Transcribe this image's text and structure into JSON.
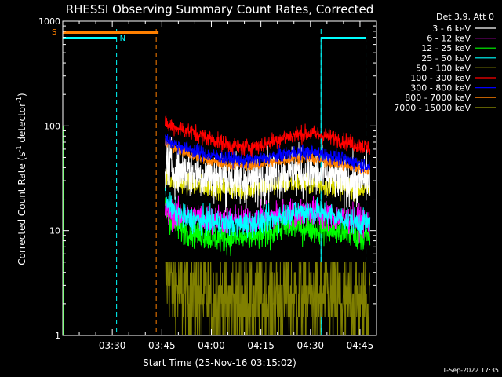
{
  "chart_data": {
    "type": "line",
    "title": "RHESSI Observing Summary Count Rates, Corrected",
    "xlabel": "Start Time (25-Nov-16 03:15:02)",
    "ylabel_main": "Corrected Count Rate (s",
    "ylabel_sup1": "-1",
    "ylabel_mid": " detector",
    "ylabel_sup2": "-1",
    "ylabel_end": ")",
    "y_scale": "log",
    "ylim": [
      1,
      1000
    ],
    "xlim_minutes": [
      0,
      95
    ],
    "y_ticks": [
      {
        "value": 1,
        "label": "1"
      },
      {
        "value": 10,
        "label": "10"
      },
      {
        "value": 100,
        "label": "100"
      },
      {
        "value": 1000,
        "label": "1000"
      }
    ],
    "x_ticks": [
      {
        "minute": 15,
        "label": "03:30"
      },
      {
        "minute": 30,
        "label": "03:45"
      },
      {
        "minute": 45,
        "label": "04:00"
      },
      {
        "minute": 60,
        "label": "04:15"
      },
      {
        "minute": 75,
        "label": "04:30"
      },
      {
        "minute": 90,
        "label": "04:45"
      }
    ],
    "legend_header": "Det 3,9, Att 0",
    "legend_position": "right",
    "series": [
      {
        "name": "3 - 6 keV",
        "color": "#ffffff",
        "points": [
          [
            31,
            45
          ],
          [
            35,
            38
          ],
          [
            40,
            36
          ],
          [
            45,
            33
          ],
          [
            50,
            32
          ],
          [
            55,
            30
          ],
          [
            60,
            32
          ],
          [
            65,
            35
          ],
          [
            70,
            37
          ],
          [
            75,
            35
          ],
          [
            80,
            33
          ],
          [
            85,
            30
          ],
          [
            90,
            31
          ],
          [
            93,
            32
          ]
        ],
        "noise": 0.12
      },
      {
        "name": "6 - 12 keV",
        "color": "#ff00ff",
        "points": [
          [
            31,
            15
          ],
          [
            35,
            14
          ],
          [
            40,
            13.5
          ],
          [
            45,
            13
          ],
          [
            50,
            12.5
          ],
          [
            55,
            12.5
          ],
          [
            60,
            13
          ],
          [
            65,
            14
          ],
          [
            70,
            15
          ],
          [
            75,
            15
          ],
          [
            80,
            14
          ],
          [
            85,
            13
          ],
          [
            90,
            12.5
          ],
          [
            93,
            12
          ]
        ],
        "noise": 0.07
      },
      {
        "name": "12 - 25 keV",
        "color": "#00ff00",
        "points": [
          [
            31,
            16
          ],
          [
            33,
            12
          ],
          [
            36,
            10.5
          ],
          [
            40,
            9.5
          ],
          [
            45,
            8.8
          ],
          [
            50,
            8.5
          ],
          [
            55,
            8.5
          ],
          [
            60,
            9
          ],
          [
            65,
            10.5
          ],
          [
            70,
            11
          ],
          [
            75,
            10.5
          ],
          [
            80,
            10
          ],
          [
            85,
            9.5
          ],
          [
            90,
            9
          ],
          [
            93,
            8.5
          ]
        ],
        "noise": 0.07
      },
      {
        "name": "25 - 50 keV",
        "color": "#00ffff",
        "points": [
          [
            31,
            22
          ],
          [
            33,
            16
          ],
          [
            36,
            13.5
          ],
          [
            40,
            12.5
          ],
          [
            45,
            12
          ],
          [
            50,
            11.5
          ],
          [
            55,
            11.5
          ],
          [
            60,
            12
          ],
          [
            65,
            13.5
          ],
          [
            70,
            15
          ],
          [
            75,
            15.5
          ],
          [
            80,
            14.5
          ],
          [
            85,
            13
          ],
          [
            90,
            12
          ],
          [
            93,
            11.5
          ]
        ],
        "noise": 0.06
      },
      {
        "name": "50 - 100 keV",
        "color": "#dddd00",
        "points": [
          [
            31,
            32
          ],
          [
            35,
            29
          ],
          [
            40,
            27
          ],
          [
            45,
            26
          ],
          [
            50,
            25
          ],
          [
            55,
            24.5
          ],
          [
            60,
            26
          ],
          [
            65,
            28
          ],
          [
            70,
            29
          ],
          [
            75,
            28
          ],
          [
            80,
            27
          ],
          [
            85,
            25.5
          ],
          [
            90,
            25
          ],
          [
            93,
            24.5
          ]
        ],
        "noise": 0.05
      },
      {
        "name": "100 - 300 keV",
        "color": "#ff0000",
        "points": [
          [
            31,
            103
          ],
          [
            35,
            95
          ],
          [
            40,
            85
          ],
          [
            45,
            75
          ],
          [
            50,
            66
          ],
          [
            55,
            62
          ],
          [
            60,
            65
          ],
          [
            65,
            75
          ],
          [
            70,
            82
          ],
          [
            75,
            85
          ],
          [
            80,
            80
          ],
          [
            85,
            72
          ],
          [
            90,
            65
          ],
          [
            93,
            62
          ]
        ],
        "noise": 0.04
      },
      {
        "name": "300 - 800 keV",
        "color": "#0000ff",
        "points": [
          [
            31,
            75
          ],
          [
            35,
            65
          ],
          [
            40,
            58
          ],
          [
            45,
            52
          ],
          [
            50,
            49
          ],
          [
            55,
            47
          ],
          [
            60,
            48
          ],
          [
            65,
            52
          ],
          [
            70,
            56
          ],
          [
            75,
            56
          ],
          [
            80,
            53
          ],
          [
            85,
            48
          ],
          [
            90,
            44
          ],
          [
            93,
            42
          ]
        ],
        "noise": 0.035
      },
      {
        "name": "800 - 7000 keV",
        "color": "#ff8000",
        "points": [
          [
            31,
            70
          ],
          [
            35,
            60
          ],
          [
            40,
            52
          ],
          [
            45,
            46
          ],
          [
            50,
            43
          ],
          [
            55,
            42
          ],
          [
            60,
            43
          ],
          [
            65,
            46
          ],
          [
            70,
            49
          ],
          [
            75,
            49
          ],
          [
            80,
            46
          ],
          [
            85,
            42
          ],
          [
            90,
            39
          ],
          [
            93,
            37
          ]
        ],
        "noise": 0.025
      },
      {
        "name": "7000 - 15000 keV",
        "color": "#808000",
        "points": [
          [
            31,
            4.2
          ],
          [
            33,
            3.2
          ],
          [
            36,
            2.6
          ],
          [
            40,
            2.3
          ],
          [
            45,
            2.2
          ],
          [
            50,
            2.0
          ],
          [
            55,
            2.0
          ],
          [
            60,
            2.1
          ],
          [
            65,
            2.2
          ],
          [
            70,
            2.3
          ],
          [
            75,
            2.4
          ],
          [
            80,
            2.2
          ],
          [
            85,
            2.0
          ],
          [
            90,
            2.0
          ],
          [
            93,
            1.9
          ]
        ],
        "noise": 0.25
      }
    ],
    "annotations": [
      {
        "label": "S",
        "color": "#ff8000"
      },
      {
        "label": "N",
        "color": "#00ffff"
      }
    ],
    "footer_date": "1-Sep-2022 17:35"
  }
}
